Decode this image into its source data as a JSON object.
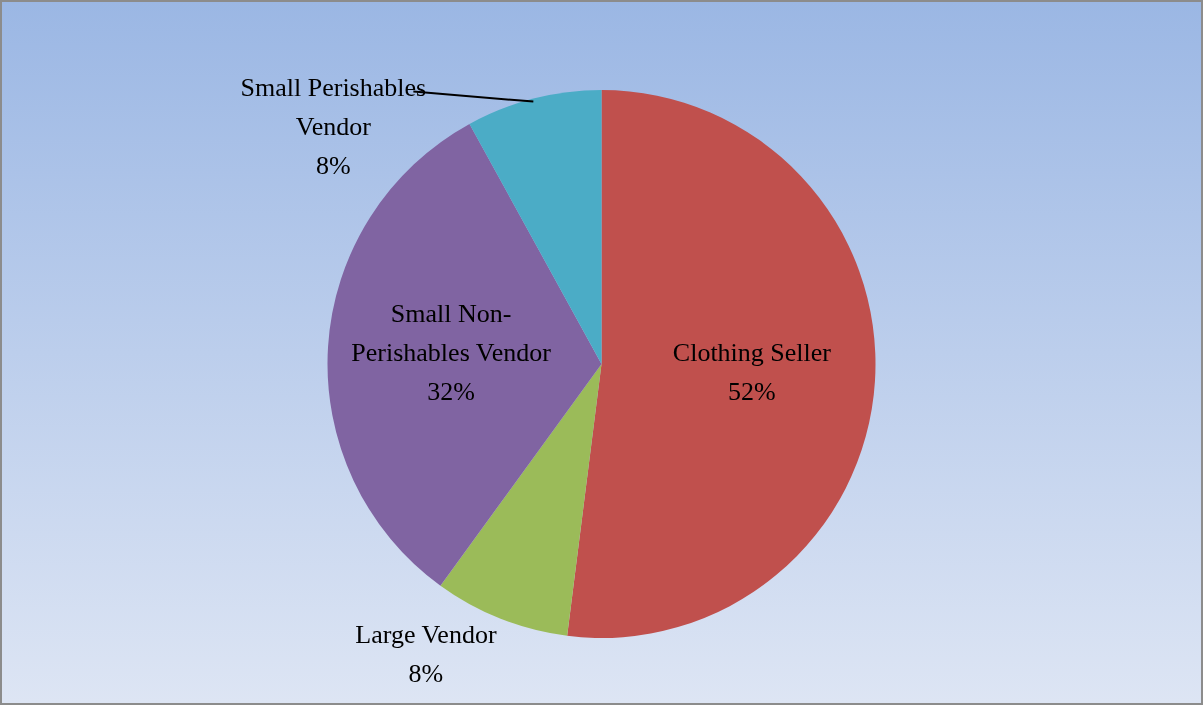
{
  "chart_data": {
    "type": "pie",
    "categories": [
      "Clothing Seller",
      "Large Vendor",
      "Small Non-Perishables Vendor",
      "Small Perishables Vendor"
    ],
    "values": [
      52,
      8,
      32,
      8
    ],
    "value_labels": [
      "52%",
      "8%",
      "32%",
      "8%"
    ],
    "colors": [
      "#c0504d",
      "#9bbb59",
      "#8064a2",
      "#4bacc6"
    ]
  }
}
